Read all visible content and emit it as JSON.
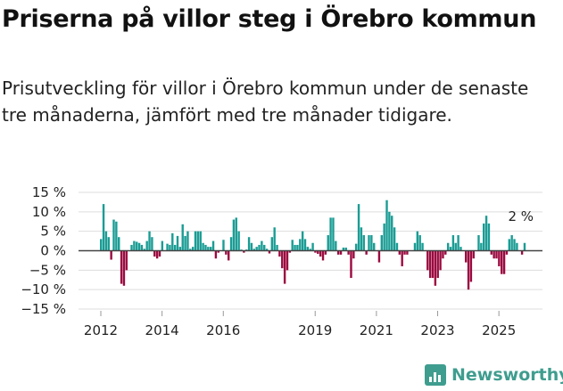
{
  "title": "Priserna på villor steg i Örebro kommun",
  "subtitle": "Prisutveckling för villor i Örebro kommun under de senaste tre månaderna, jämfört med tre månader tidigare.",
  "brand": "Newsworthy",
  "colors": {
    "positive": "#1a9c94",
    "negative": "#9b0a3f",
    "grid": "#dddddd",
    "zero": "#444444"
  },
  "chart_data": {
    "type": "bar",
    "title": "Priserna på villor steg i Örebro kommun",
    "xlabel": "",
    "ylabel": "",
    "start_month": "2012-01",
    "frequency": "monthly",
    "ylim": [
      -15,
      15
    ],
    "y_ticks": [
      15,
      10,
      5,
      0,
      -5,
      -10,
      -15
    ],
    "y_tick_labels": [
      "15 %",
      "10 %",
      "5 %",
      "0 %",
      "−5 %",
      "−10 %",
      "−15 %"
    ],
    "x_ticks": [
      {
        "label": "2012",
        "month_index": 0
      },
      {
        "label": "2014",
        "month_index": 24
      },
      {
        "label": "2016",
        "month_index": 48
      },
      {
        "label": "2019",
        "month_index": 84
      },
      {
        "label": "2021",
        "month_index": 108
      },
      {
        "label": "2023",
        "month_index": 132
      },
      {
        "label": "2025",
        "month_index": 156
      }
    ],
    "annotation": "2 %",
    "grid": true,
    "values": [
      3,
      12,
      5,
      3.5,
      -2.3,
      8,
      7.5,
      3.5,
      -8.5,
      -9,
      -5,
      0,
      1.5,
      2.5,
      2.3,
      2,
      1.5,
      0.5,
      2.5,
      5,
      3.5,
      -1.5,
      -2,
      -1.5,
      2.5,
      0,
      1.8,
      1.5,
      4.5,
      1.5,
      3.8,
      1,
      6.8,
      3.8,
      5,
      0.5,
      1,
      5,
      5,
      5,
      2,
      1.5,
      1,
      1,
      2.5,
      -2,
      -0.5,
      0,
      2.8,
      -1,
      -2.5,
      3.5,
      8,
      8.5,
      5,
      0.3,
      -0.5,
      0.3,
      3.5,
      2,
      0.5,
      1,
      1.5,
      2.5,
      1.5,
      0.5,
      -0.7,
      3.5,
      6,
      1.5,
      -1.5,
      -4.5,
      -8.5,
      -5,
      -0.5,
      2.8,
      1.5,
      1.5,
      3,
      5,
      3,
      1,
      0.5,
      2,
      -0.5,
      -0.8,
      -1.5,
      -2.5,
      -1,
      4,
      8.5,
      8.5,
      2.5,
      -1,
      -1,
      0.8,
      0.8,
      -1,
      -7,
      -2,
      1.8,
      12,
      6,
      4,
      -1,
      4,
      4,
      2,
      0,
      -3,
      4,
      7,
      13,
      10,
      9,
      6,
      2,
      -1,
      -4,
      -1,
      -1,
      0,
      0,
      2,
      5,
      4,
      2,
      0,
      -5,
      -7,
      -7,
      -9,
      -7,
      -5,
      -2,
      -1,
      2,
      1,
      4,
      2,
      4,
      1,
      0,
      -3,
      -10,
      -8,
      -2,
      0,
      4,
      2,
      7,
      9,
      7,
      -1,
      -2,
      -2,
      -4,
      -6,
      -6,
      -1,
      3,
      4,
      3,
      2,
      0,
      -1,
      2
    ]
  }
}
